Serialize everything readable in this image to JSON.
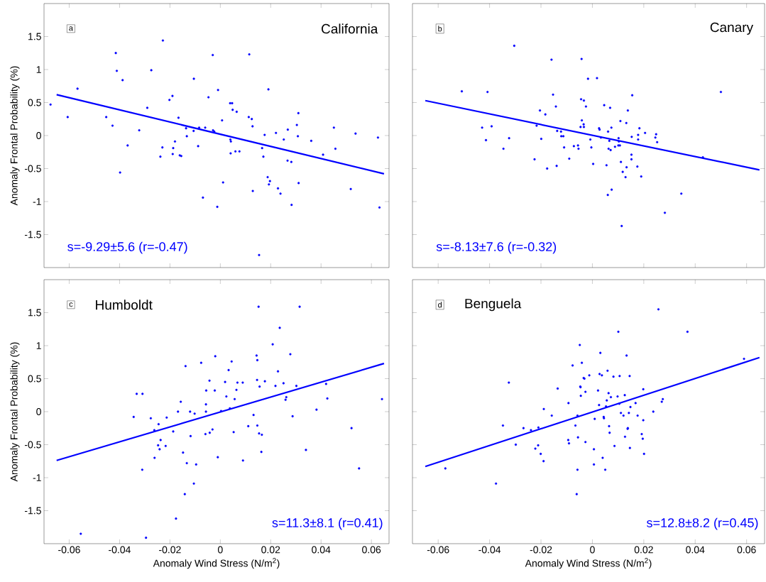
{
  "chart_data": [
    {
      "type": "scatter",
      "title": "California",
      "ylabel": "Anomaly Frontal Probability (%)",
      "annotations": [
        "a",
        "s=-9.29±5.6  (r=-0.47)"
      ],
      "xlim": [
        -0.07,
        0.067
      ],
      "ylim": [
        -2,
        2
      ],
      "xticks": [
        -0.06,
        -0.04,
        -0.02,
        0,
        0.02,
        0.04,
        0.06
      ],
      "yticks": [
        -1.5,
        -1,
        -0.5,
        0,
        0.5,
        1,
        1.5
      ],
      "tick_labels": "y",
      "series": [
        {
          "marker": "circle",
          "color": "#0000ff",
          "x": [
            -0.0674,
            -0.0606,
            -0.0567,
            -0.0453,
            -0.0428,
            -0.0415,
            -0.0411,
            -0.0398,
            -0.0388,
            -0.0368,
            -0.0322,
            -0.029,
            -0.0274,
            -0.0238,
            -0.023,
            -0.0228,
            -0.0202,
            -0.019,
            -0.0189,
            -0.0187,
            -0.018,
            -0.0166,
            -0.0161,
            -0.0155,
            -0.0136,
            -0.0133,
            -0.0106,
            -0.0105,
            -0.0088,
            -0.0084,
            -0.0069,
            -0.006,
            -0.0047,
            -0.003,
            -0.0029,
            -0.0024,
            -0.0012,
            -0.0009,
            0.0007,
            0.0011,
            0.0039,
            0.004,
            0.0041,
            0.0042,
            0.0047,
            0.0049,
            0.006,
            0.0065,
            0.0076,
            0.0113,
            0.0115,
            0.0125,
            0.0128,
            0.0129,
            0.0154,
            0.0166,
            0.0171,
            0.0176,
            0.0188,
            0.0191,
            0.0193,
            0.0197,
            0.0221,
            0.0229,
            0.0239,
            0.0252,
            0.0267,
            0.0268,
            0.0282,
            0.0283,
            0.0304,
            0.0308,
            0.031,
            0.0311,
            0.0361,
            0.0408,
            0.0451,
            0.0457,
            0.0518,
            0.0537,
            0.0626,
            0.0632
          ],
          "values": [
            0.47,
            0.28,
            0.71,
            0.28,
            0.15,
            1.25,
            0.98,
            -0.56,
            0.84,
            -0.15,
            0.08,
            0.42,
            0.99,
            -0.32,
            -0.18,
            1.44,
            0.54,
            0.6,
            -0.28,
            -0.19,
            -0.09,
            0.27,
            -0.3,
            -0.31,
            0.11,
            -0.01,
            0.07,
            0.86,
            -0.16,
            0.12,
            -0.94,
            0.12,
            0.58,
            1.22,
            0.08,
            0.06,
            -1.08,
            0.69,
            0.23,
            -0.71,
            0.49,
            -0.06,
            -0.27,
            -0.09,
            0.49,
            0.39,
            -0.24,
            0.36,
            -0.24,
            0.28,
            1.23,
            0.25,
            0.14,
            -0.84,
            -1.81,
            -0.19,
            -0.32,
            0.01,
            -0.63,
            0.7,
            -0.74,
            -0.69,
            0.04,
            -0.8,
            -0.88,
            -0.06,
            -0.38,
            0.09,
            -0.4,
            -1.05,
            0.16,
            -0.01,
            0.34,
            -0.72,
            -0.08,
            -0.29,
            0.12,
            -0.2,
            -0.81,
            0.03,
            -0.03,
            -1.09
          ]
        },
        {
          "type": "line",
          "marker": "none",
          "color": "#0000ff",
          "x": [
            -0.065,
            0.065
          ],
          "values": [
            0.62,
            -0.58
          ]
        }
      ]
    },
    {
      "type": "scatter",
      "title": "Canary",
      "annotations": [
        "b",
        "s=-8.13±7.6  (r=-0.32)"
      ],
      "xlim": [
        -0.07,
        0.067
      ],
      "ylim": [
        -2,
        2
      ],
      "xticks": [
        -0.06,
        -0.04,
        -0.02,
        0,
        0.02,
        0.04,
        0.06
      ],
      "yticks": [
        -1.5,
        -1,
        -0.5,
        0,
        0.5,
        1,
        1.5
      ],
      "tick_labels": false,
      "series": [
        {
          "marker": "circle",
          "color": "#0000ff",
          "x": [
            -0.0508,
            -0.0429,
            -0.0414,
            -0.0408,
            -0.0392,
            -0.0346,
            -0.0324,
            -0.0304,
            -0.0225,
            -0.0217,
            -0.0204,
            -0.0199,
            -0.0183,
            -0.0176,
            -0.0159,
            -0.0153,
            -0.0142,
            -0.0139,
            -0.0137,
            -0.0122,
            -0.0121,
            -0.0113,
            -0.011,
            -0.009,
            -0.0072,
            -0.0056,
            -0.0054,
            -0.0046,
            -0.0044,
            -0.0042,
            -0.0041,
            -0.0034,
            -0.0033,
            -0.0033,
            -0.0025,
            -0.0017,
            -0.0008,
            -0.0004,
            0.0003,
            0.0018,
            0.0026,
            0.0028,
            0.0033,
            0.0046,
            0.0055,
            0.006,
            0.0061,
            0.0063,
            0.0066,
            0.0069,
            0.0071,
            0.0074,
            0.0075,
            0.0088,
            0.0101,
            0.0102,
            0.0103,
            0.0107,
            0.0109,
            0.0111,
            0.0114,
            0.0118,
            0.0129,
            0.0132,
            0.0133,
            0.0138,
            0.0152,
            0.0152,
            0.0153,
            0.0155,
            0.0175,
            0.0178,
            0.0178,
            0.0183,
            0.019,
            0.0205,
            0.0245,
            0.0248,
            0.0252,
            0.0282,
            0.0346,
            0.043,
            0.05
          ],
          "values": [
            0.67,
            0.12,
            -0.07,
            0.66,
            0.14,
            -0.2,
            -0.04,
            1.36,
            -0.36,
            0.15,
            0.38,
            -0.05,
            0.32,
            -0.5,
            1.15,
            0.62,
            0.44,
            -0.46,
            0.07,
            0.06,
            -0.01,
            -0.01,
            -0.18,
            -0.35,
            -0.16,
            -0.15,
            -0.2,
            0.13,
            0.55,
            1.16,
            0.23,
            0.17,
            0.13,
            0.53,
            0.44,
            0.86,
            -0.06,
            -0.18,
            -0.43,
            0.87,
            0.11,
            0.09,
            -0.03,
            0.46,
            -0.45,
            -0.9,
            0.06,
            -0.2,
            -0.08,
            0.42,
            -0.22,
            0.12,
            -0.82,
            -0.17,
            -0.15,
            -0.04,
            -0.09,
            -0.15,
            0.22,
            -0.4,
            -1.37,
            -0.55,
            -0.63,
            0.19,
            -0.48,
            0.38,
            -0.29,
            -0.36,
            -0.02,
            0.61,
            -0.47,
            -0.06,
            0.01,
            0.11,
            -0.62,
            0.04,
            -0.03,
            0.02,
            -0.1,
            -1.17,
            -0.88,
            -0.33,
            0.66
          ]
        },
        {
          "type": "line",
          "marker": "none",
          "color": "#0000ff",
          "x": [
            -0.065,
            0.065
          ],
          "values": [
            0.53,
            -0.52
          ]
        }
      ]
    },
    {
      "type": "scatter",
      "title": "Humboldt",
      "xlabel": "Anomaly Wind Stress (N/m$^{2}$)",
      "ylabel": "Anomaly Frontal Probability (%)",
      "annotations": [
        "c",
        "s=11.3±8.1  (r=0.41)"
      ],
      "xlim": [
        -0.07,
        0.067
      ],
      "ylim": [
        -2,
        2
      ],
      "xticks": [
        -0.06,
        -0.04,
        -0.02,
        0,
        0.02,
        0.04,
        0.06
      ],
      "yticks": [
        -1.5,
        -1,
        -0.5,
        0,
        0.5,
        1,
        1.5
      ],
      "series": [
        {
          "marker": "circle",
          "color": "#0000ff",
          "x": [
            -0.0554,
            -0.0344,
            -0.0332,
            -0.031,
            -0.0309,
            -0.0295,
            -0.0276,
            -0.0262,
            -0.0261,
            -0.0247,
            -0.0245,
            -0.0241,
            -0.0237,
            -0.0217,
            -0.0213,
            -0.0187,
            -0.0176,
            -0.0168,
            -0.0157,
            -0.0148,
            -0.0141,
            -0.0138,
            -0.0133,
            -0.012,
            -0.0118,
            -0.0105,
            -0.0102,
            -0.0096,
            -0.0076,
            -0.0059,
            -0.0057,
            -0.0057,
            -0.0056,
            -0.0043,
            -0.0042,
            -0.0031,
            -0.0022,
            -0.002,
            -0.001,
            0.0003,
            0.0019,
            0.0024,
            0.0033,
            0.0038,
            0.0045,
            0.0053,
            0.0057,
            0.0064,
            0.0068,
            0.0089,
            0.009,
            0.0111,
            0.0132,
            0.0144,
            0.0146,
            0.0147,
            0.0147,
            0.0152,
            0.0154,
            0.0156,
            0.0163,
            0.0165,
            0.0177,
            0.0208,
            0.0219,
            0.0229,
            0.0236,
            0.0251,
            0.0259,
            0.0262,
            0.0278,
            0.0287,
            0.0302,
            0.0315,
            0.034,
            0.0382,
            0.042,
            0.0425,
            0.0521,
            0.0551,
            0.0642
          ],
          "values": [
            -1.85,
            -0.08,
            0.27,
            -0.88,
            0.27,
            -1.91,
            -0.1,
            -0.28,
            -0.7,
            -0.51,
            -0.19,
            -0.57,
            -0.43,
            -0.52,
            -0.09,
            -0.3,
            -1.62,
            0,
            0.15,
            -0.62,
            -1.25,
            0.69,
            -0.78,
            0,
            -0.37,
            -1.09,
            -0.03,
            -0.8,
            0.74,
            -0.34,
            0.11,
            0,
            0.32,
            0.47,
            -0.32,
            -0.27,
            0.32,
            0.84,
            -0.69,
            0.01,
            0.45,
            0.23,
            0.63,
            0.05,
            0.76,
            -0.31,
            0.19,
            0.33,
            0.44,
            0.44,
            -0.74,
            -0.22,
            -0.05,
            0.85,
            0.48,
            0.78,
            -0.21,
            1.59,
            -0.33,
            0.38,
            -0.61,
            -0.35,
            0.46,
            1.02,
            0.39,
            0.61,
            1.27,
            0.43,
            0.18,
            0.22,
            0.87,
            -0.07,
            0.39,
            1.59,
            -0.58,
            0.03,
            0.42,
            0.2,
            -0.25,
            -0.86,
            0.19
          ]
        },
        {
          "type": "line",
          "marker": "none",
          "color": "#0000ff",
          "x": [
            -0.065,
            0.065
          ],
          "values": [
            -0.74,
            0.73
          ]
        }
      ]
    },
    {
      "type": "scatter",
      "title": "Benguela",
      "xlabel": "Anomaly Wind Stress (N/m$^{2}$)",
      "annotations": [
        "d",
        "s=12.8±8.2  (r=0.45)"
      ],
      "xlim": [
        -0.07,
        0.067
      ],
      "ylim": [
        -2,
        2
      ],
      "xticks": [
        -0.06,
        -0.04,
        -0.02,
        0,
        0.02,
        0.04,
        0.06
      ],
      "yticks": [
        -1.5,
        -1,
        -0.5,
        0,
        0.5,
        1,
        1.5
      ],
      "tick_labels": "x",
      "series": [
        {
          "marker": "circle",
          "color": "#0000ff",
          "x": [
            -0.0572,
            -0.0375,
            -0.0348,
            -0.0325,
            -0.0298,
            -0.0268,
            -0.0239,
            -0.0222,
            -0.0211,
            -0.021,
            -0.0201,
            -0.019,
            -0.0189,
            -0.0158,
            -0.0135,
            -0.0094,
            -0.0093,
            -0.0091,
            -0.0077,
            -0.0066,
            -0.0061,
            -0.0058,
            -0.0058,
            -0.0056,
            -0.0049,
            -0.0047,
            -0.0046,
            -0.0045,
            -0.0041,
            -0.0034,
            -0.0031,
            -0.0027,
            -0.0027,
            -0.0012,
            0.0006,
            0.0006,
            0.0009,
            0.0022,
            0.0026,
            0.0028,
            0.0031,
            0.0037,
            0.004,
            0.0044,
            0.0045,
            0.005,
            0.0053,
            0.0056,
            0.0059,
            0.0063,
            0.0065,
            0.0067,
            0.0072,
            0.0082,
            0.0086,
            0.0098,
            0.0101,
            0.0105,
            0.0106,
            0.0111,
            0.0121,
            0.0126,
            0.0127,
            0.0133,
            0.0137,
            0.0138,
            0.0142,
            0.0145,
            0.0146,
            0.0148,
            0.0168,
            0.0176,
            0.0192,
            0.0196,
            0.0198,
            0.0198,
            0.0201,
            0.0237,
            0.0257,
            0.027,
            0.0274,
            0.037,
            0.059
          ],
          "values": [
            -0.86,
            -1.09,
            -0.21,
            0.44,
            -0.5,
            -0.25,
            -0.28,
            -0.56,
            -0.51,
            -0.24,
            -0.64,
            -0.75,
            0.04,
            -0.06,
            0.35,
            -0.43,
            0.13,
            -0.48,
            0.7,
            -0.21,
            -1.25,
            -0.88,
            -0.06,
            -0.39,
            1.01,
            0.38,
            0.37,
            0.24,
            0.74,
            0.51,
            0.5,
            0.3,
            -0.46,
            0.55,
            -0.57,
            -0.8,
            -0.11,
            0.32,
            0.1,
            0.57,
            0.89,
            0.55,
            -0.7,
            -0.08,
            -0.1,
            -0.88,
            0.08,
            0.17,
            0.62,
            0.28,
            -0.22,
            -0.32,
            0.22,
            0.53,
            -0.52,
            0.23,
            1.21,
            0.12,
            0.54,
            -0.02,
            -0.06,
            0.25,
            -0.38,
            0.85,
            -0.26,
            -0.25,
            -0.02,
            0.54,
            -0.55,
            0.07,
            0.13,
            -0.06,
            -0.34,
            -0.41,
            -0.13,
            0.34,
            -0.64,
            0,
            1.55,
            0.15,
            0.19,
            1.21,
            0.8
          ]
        },
        {
          "type": "line",
          "marker": "none",
          "color": "#0000ff",
          "x": [
            -0.065,
            0.065
          ],
          "values": [
            -0.83,
            0.82
          ]
        }
      ]
    }
  ]
}
